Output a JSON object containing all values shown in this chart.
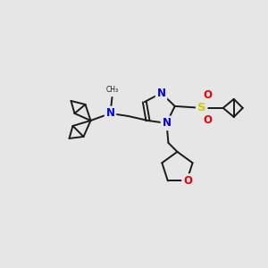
{
  "background_color": "#e6e6e6",
  "atom_colors": {
    "C": "#1a1a1a",
    "N": "#0000ee",
    "O": "#ee0000",
    "S": "#cccc00"
  },
  "line_color": "#1a1a1a",
  "line_width": 1.4,
  "font_size_atom": 8.5,
  "fig_width": 3.0,
  "fig_height": 3.0,
  "dpi": 100
}
